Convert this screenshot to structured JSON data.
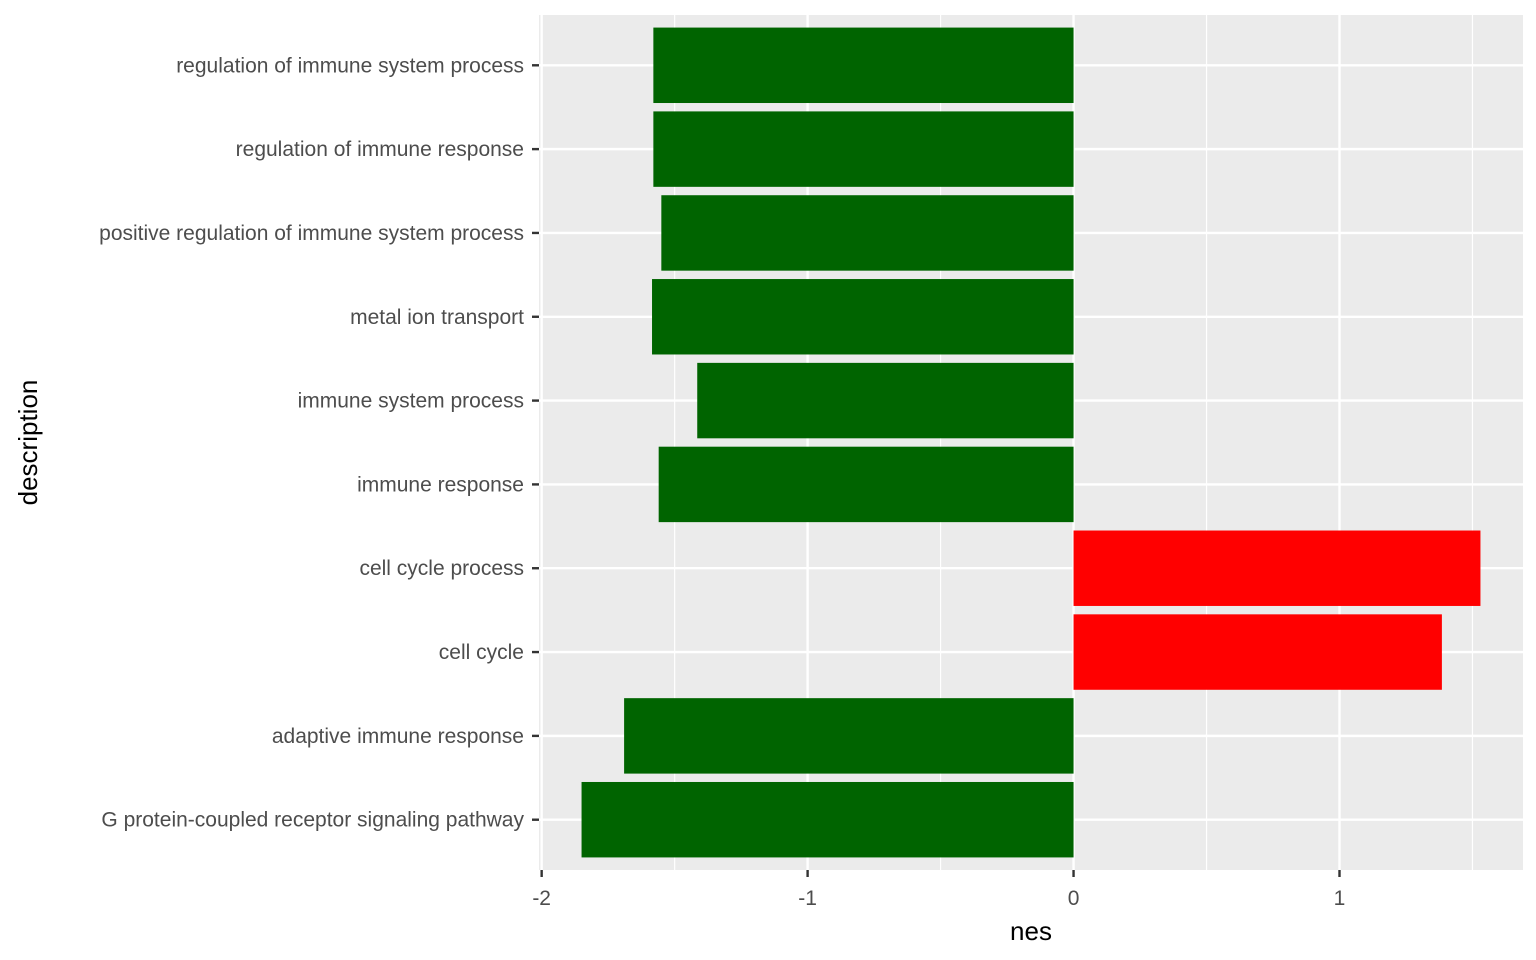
{
  "chart_data": {
    "type": "bar",
    "orientation": "horizontal",
    "xlabel": "nes",
    "ylabel": "description",
    "xlim": [
      -2.01,
      1.69
    ],
    "x_ticks": [
      -2,
      -1,
      0,
      1
    ],
    "x_tick_labels": [
      "-2",
      "-1",
      "0",
      "1"
    ],
    "grid": true,
    "colors": {
      "panel_background": "#ebebeb",
      "grid": "#ffffff",
      "negative": "#006400",
      "positive": "#ff0000",
      "tick_text": "#4d4d4d",
      "tick_mark": "#333333"
    },
    "categories": [
      "regulation of immune system process",
      "regulation of immune response",
      "positive regulation of immune system process",
      "metal ion transport",
      "immune system process",
      "immune response",
      "cell cycle process",
      "cell cycle",
      "adaptive immune response",
      "G protein-coupled receptor signaling pathway"
    ],
    "values": [
      -1.58,
      -1.58,
      -1.55,
      -1.585,
      -1.415,
      -1.56,
      1.53,
      1.385,
      -1.69,
      -1.85
    ]
  }
}
